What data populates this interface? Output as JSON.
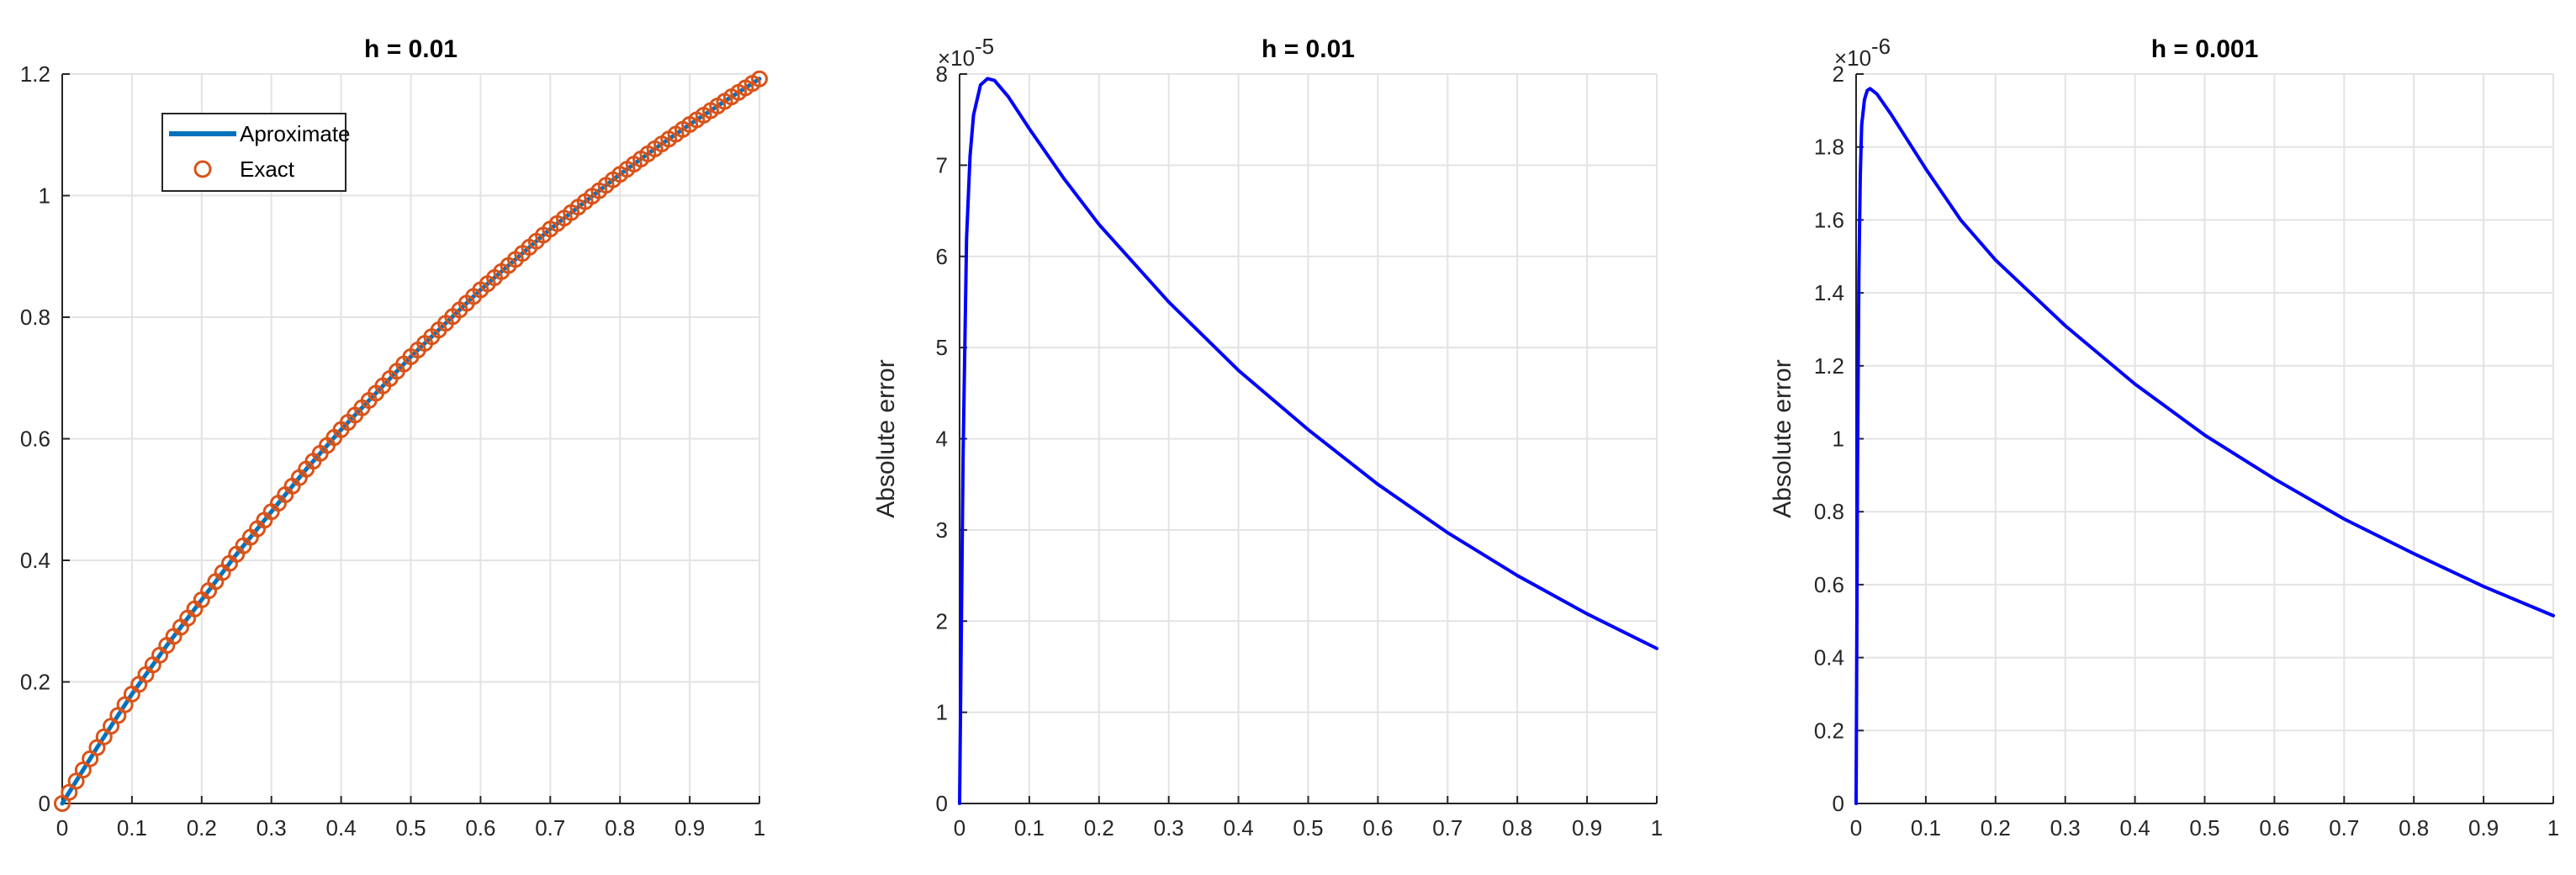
{
  "chart_data": [
    {
      "type": "line",
      "title": "h = 0.01",
      "xlabel": "",
      "ylabel": "",
      "xlim": [
        0,
        1
      ],
      "ylim": [
        0,
        1.2
      ],
      "xticks": [
        "0",
        "0.1",
        "0.2",
        "0.3",
        "0.4",
        "0.5",
        "0.6",
        "0.7",
        "0.8",
        "0.9",
        "1"
      ],
      "yticks": [
        "0",
        "0.2",
        "0.4",
        "0.6",
        "0.8",
        "1",
        "1.2"
      ],
      "grid": true,
      "legend": {
        "position": "top-left",
        "entries": [
          "Aproximate",
          "Exact"
        ]
      },
      "series": [
        {
          "name": "Aproximate",
          "style": "line",
          "color": "#0072BD",
          "x": [
            0,
            0.05,
            0.1,
            0.15,
            0.2,
            0.25,
            0.3,
            0.35,
            0.4,
            0.45,
            0.5,
            0.55,
            0.6,
            0.65,
            0.7,
            0.75,
            0.8,
            0.85,
            0.9,
            0.95,
            1.0
          ],
          "y": [
            0,
            0.092,
            0.18,
            0.26,
            0.335,
            0.41,
            0.48,
            0.55,
            0.615,
            0.675,
            0.735,
            0.79,
            0.845,
            0.895,
            0.945,
            0.99,
            1.035,
            1.077,
            1.117,
            1.155,
            1.192
          ]
        },
        {
          "name": "Exact",
          "style": "markers",
          "marker": "circle",
          "color": "#D95319",
          "x": [
            0,
            0.05,
            0.1,
            0.15,
            0.2,
            0.25,
            0.3,
            0.35,
            0.4,
            0.45,
            0.5,
            0.55,
            0.6,
            0.65,
            0.7,
            0.75,
            0.8,
            0.85,
            0.9,
            0.95,
            1.0
          ],
          "y": [
            0,
            0.092,
            0.18,
            0.26,
            0.335,
            0.41,
            0.48,
            0.55,
            0.615,
            0.675,
            0.735,
            0.79,
            0.845,
            0.895,
            0.945,
            0.99,
            1.035,
            1.077,
            1.117,
            1.155,
            1.192
          ]
        }
      ]
    },
    {
      "type": "line",
      "title": "h = 0.01",
      "xlabel": "",
      "ylabel": "Absolute error",
      "exponent_label": "×10",
      "exponent": "-5",
      "xlim": [
        0,
        1
      ],
      "ylim": [
        0,
        8
      ],
      "xticks": [
        "0",
        "0.1",
        "0.2",
        "0.3",
        "0.4",
        "0.5",
        "0.6",
        "0.7",
        "0.8",
        "0.9",
        "1"
      ],
      "yticks": [
        "0",
        "1",
        "2",
        "3",
        "4",
        "5",
        "6",
        "7",
        "8"
      ],
      "grid": true,
      "series": [
        {
          "color": "#0000FF",
          "x": [
            0,
            0.005,
            0.01,
            0.015,
            0.02,
            0.03,
            0.04,
            0.05,
            0.07,
            0.1,
            0.15,
            0.2,
            0.3,
            0.4,
            0.5,
            0.6,
            0.7,
            0.8,
            0.9,
            1.0
          ],
          "y": [
            0,
            3.8,
            6.2,
            7.1,
            7.55,
            7.88,
            7.95,
            7.93,
            7.75,
            7.4,
            6.85,
            6.35,
            5.5,
            4.75,
            4.1,
            3.5,
            2.97,
            2.5,
            2.08,
            1.7
          ]
        }
      ]
    },
    {
      "type": "line",
      "title": "h = 0.001",
      "xlabel": "",
      "ylabel": "Absolute error",
      "exponent_label": "×10",
      "exponent": "-6",
      "xlim": [
        0,
        1
      ],
      "ylim": [
        0,
        2
      ],
      "xticks": [
        "0",
        "0.1",
        "0.2",
        "0.3",
        "0.4",
        "0.5",
        "0.6",
        "0.7",
        "0.8",
        "0.9",
        "1"
      ],
      "yticks": [
        "0",
        "0.2",
        "0.4",
        "0.6",
        "0.8",
        "1",
        "1.2",
        "1.4",
        "1.6",
        "1.8",
        "2"
      ],
      "grid": true,
      "series": [
        {
          "color": "#0000FF",
          "x": [
            0,
            0.002,
            0.004,
            0.006,
            0.008,
            0.012,
            0.016,
            0.02,
            0.03,
            0.05,
            0.1,
            0.15,
            0.2,
            0.3,
            0.4,
            0.5,
            0.6,
            0.7,
            0.8,
            0.9,
            1.0
          ],
          "y": [
            0,
            0.9,
            1.45,
            1.72,
            1.86,
            1.93,
            1.955,
            1.96,
            1.945,
            1.89,
            1.74,
            1.6,
            1.49,
            1.31,
            1.15,
            1.01,
            0.89,
            0.78,
            0.685,
            0.595,
            0.515
          ]
        }
      ]
    }
  ]
}
